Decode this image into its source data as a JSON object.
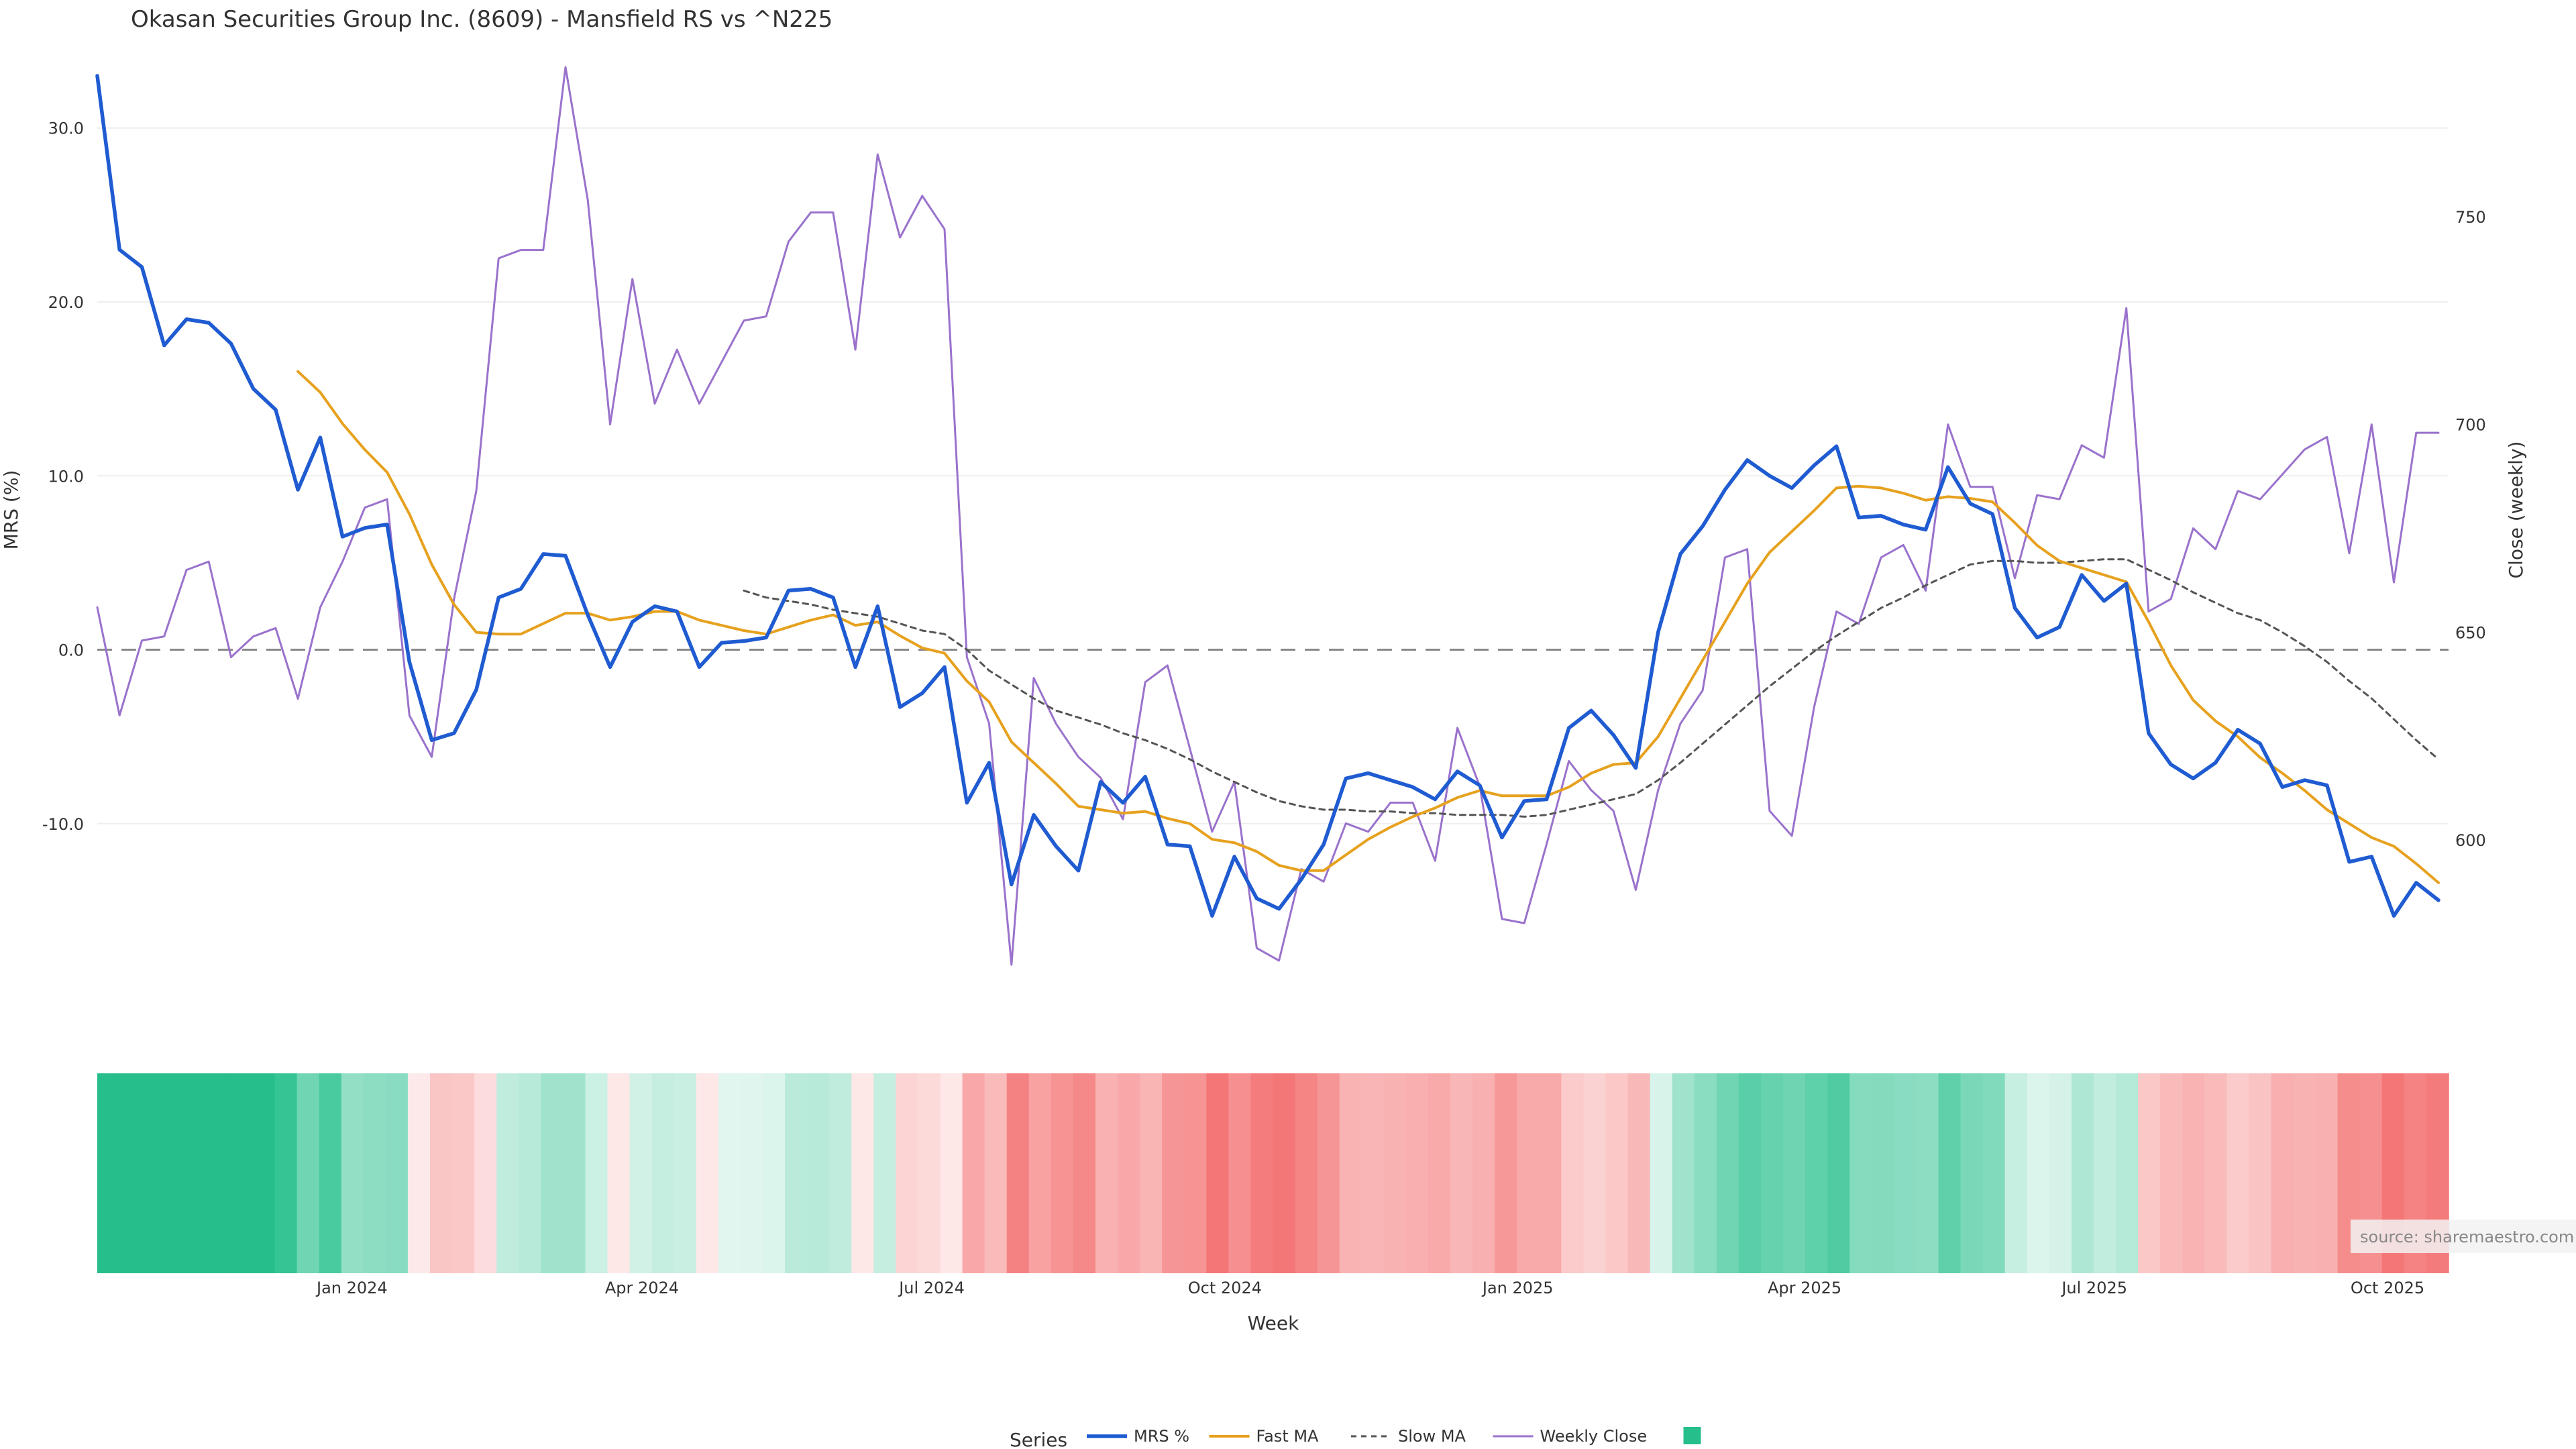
{
  "chart_data": {
    "type": "line",
    "title": "Okasan Securities Group Inc. (8609) - Mansfield RS vs ^N225",
    "xlabel": "Week",
    "ylabel_left": "MRS (%)",
    "ylabel_right": "Close (weekly)",
    "source_note": "source: sharemaestro.com",
    "x_start_date": "2023-10-13",
    "x_step_days": 7,
    "x_tick_labels": [
      "Jan 2024",
      "Apr 2024",
      "Jul 2024",
      "Oct 2024",
      "Jan 2025",
      "Apr 2025",
      "Jul 2025",
      "Oct 2025"
    ],
    "x_tick_dates": [
      "2024-01-01",
      "2024-04-01",
      "2024-07-01",
      "2024-10-01",
      "2025-01-01",
      "2025-04-01",
      "2025-07-01",
      "2025-10-01"
    ],
    "y_left_range": [
      -20.5,
      33.5
    ],
    "y_left_ticks": [
      "30.0",
      "20.0",
      "10.0",
      "0.0",
      "-10.0"
    ],
    "y_left_tick_values": [
      30,
      20,
      10,
      0,
      -10
    ],
    "y_right_range": [
      560,
      786
    ],
    "y_right_ticks": [
      "750",
      "700",
      "650",
      "600"
    ],
    "y_right_tick_values": [
      750,
      700,
      650,
      600
    ],
    "zero_line": 0,
    "colors": {
      "mrs": "#1f5bd1",
      "fast_ma": "#e6a11e",
      "slow_ma": "#555555",
      "weekly_close": "#9a72cc",
      "zero_line": "#888888",
      "grid": "#eeeeee",
      "heat_positive": "#26bf8c",
      "heat_negative": "#f47676"
    },
    "legend_title": "Series",
    "series": [
      {
        "name": "MRS %",
        "values": [
          33.0,
          23.0,
          22.0,
          17.5,
          19.0,
          18.8,
          17.6,
          15.0,
          13.8,
          9.2,
          12.2,
          6.5,
          7.0,
          7.2,
          -0.7,
          -5.2,
          -4.8,
          -2.3,
          3.0,
          3.5,
          5.5,
          5.4,
          2.0,
          -1.0,
          1.6,
          2.5,
          2.2,
          -1.0,
          0.4,
          0.5,
          0.7,
          3.4,
          3.5,
          3.0,
          -1.0,
          2.5,
          -3.3,
          -2.5,
          -1.0,
          -8.8,
          -6.5,
          -13.5,
          -9.5,
          -11.3,
          -12.7,
          -7.6,
          -8.8,
          -7.3,
          -11.2,
          -11.3,
          -15.3,
          -11.9,
          -14.3,
          -14.9,
          -13.2,
          -11.2,
          -7.4,
          -7.1,
          -7.5,
          -7.9,
          -8.6,
          -7.0,
          -7.8,
          -10.8,
          -8.7,
          -8.6,
          -4.5,
          -3.5,
          -4.9,
          -6.8,
          1.0,
          5.5,
          7.1,
          9.2,
          10.9,
          10.0,
          9.3,
          10.6,
          11.7,
          7.6,
          7.7,
          7.2,
          6.9,
          10.5,
          8.4,
          7.8,
          2.4,
          0.7,
          1.3,
          4.3,
          2.8,
          3.8,
          -4.8,
          -6.6,
          -7.4,
          -6.5,
          -4.6,
          -5.4,
          -7.9,
          -7.5,
          -7.8,
          -12.2,
          -11.9,
          -15.3,
          -13.4,
          -14.4
        ]
      },
      {
        "name": "Fast MA",
        "values": [
          null,
          null,
          null,
          null,
          null,
          null,
          null,
          null,
          null,
          16.0,
          14.8,
          13.0,
          11.5,
          10.2,
          7.8,
          4.9,
          2.6,
          1.0,
          0.9,
          0.9,
          1.5,
          2.1,
          2.1,
          1.7,
          1.9,
          2.2,
          2.2,
          1.7,
          1.4,
          1.1,
          0.9,
          1.3,
          1.7,
          2.0,
          1.4,
          1.6,
          0.8,
          0.1,
          -0.2,
          -1.8,
          -3.0,
          -5.3,
          -6.5,
          -7.7,
          -9.0,
          -9.2,
          -9.4,
          -9.3,
          -9.7,
          -10.0,
          -10.9,
          -11.1,
          -11.6,
          -12.4,
          -12.7,
          -12.7,
          -11.8,
          -10.9,
          -10.2,
          -9.6,
          -9.1,
          -8.5,
          -8.1,
          -8.4,
          -8.4,
          -8.4,
          -7.9,
          -7.1,
          -6.6,
          -6.5,
          -5.0,
          -2.8,
          -0.6,
          1.6,
          3.8,
          5.6,
          6.8,
          8.0,
          9.3,
          9.4,
          9.3,
          9.0,
          8.6,
          8.8,
          8.7,
          8.5,
          7.3,
          6.0,
          5.1,
          4.7,
          4.3,
          3.9,
          1.6,
          -0.9,
          -2.9,
          -4.1,
          -5.0,
          -6.2,
          -7.1,
          -8.1,
          -9.2,
          -10.0,
          -10.8,
          -11.3,
          -12.3,
          -13.4
        ]
      },
      {
        "name": "Slow MA",
        "values": [
          null,
          null,
          null,
          null,
          null,
          null,
          null,
          null,
          null,
          null,
          null,
          null,
          null,
          null,
          null,
          null,
          null,
          null,
          null,
          null,
          null,
          null,
          null,
          null,
          null,
          null,
          null,
          null,
          null,
          3.4,
          3.0,
          2.8,
          2.6,
          2.3,
          2.1,
          1.9,
          1.5,
          1.1,
          0.9,
          0.0,
          -1.2,
          -2.0,
          -2.8,
          -3.5,
          -3.9,
          -4.3,
          -4.8,
          -5.2,
          -5.7,
          -6.3,
          -7.0,
          -7.6,
          -8.2,
          -8.7,
          -9.0,
          -9.2,
          -9.2,
          -9.3,
          -9.3,
          -9.4,
          -9.4,
          -9.5,
          -9.5,
          -9.5,
          -9.6,
          -9.5,
          -9.2,
          -8.9,
          -8.6,
          -8.3,
          -7.5,
          -6.5,
          -5.4,
          -4.3,
          -3.2,
          -2.1,
          -1.1,
          -0.1,
          0.8,
          1.6,
          2.4,
          3.0,
          3.7,
          4.3,
          4.9,
          5.1,
          5.1,
          5.0,
          5.0,
          5.1,
          5.2,
          5.2,
          4.6,
          4.0,
          3.3,
          2.7,
          2.1,
          1.7,
          1.0,
          0.2,
          -0.7,
          -1.8,
          -2.8,
          -4.0,
          -5.2,
          -6.3
        ]
      },
      {
        "name": "Weekly Close",
        "axis": "right",
        "values": [
          656,
          630,
          648,
          649,
          665,
          667,
          644,
          649,
          651,
          634,
          656,
          667,
          680,
          682,
          630,
          620,
          658,
          684,
          740,
          742,
          742,
          786,
          754,
          700,
          735,
          705,
          718,
          705,
          715,
          725,
          726,
          744,
          751,
          751,
          718,
          765,
          745,
          755,
          747,
          644,
          628,
          570,
          639,
          628,
          620,
          615,
          605,
          638,
          642,
          622,
          602,
          614,
          574,
          571,
          593,
          590,
          604,
          602,
          609,
          609,
          595,
          627,
          613,
          581,
          580,
          599,
          619,
          612,
          607,
          588,
          612,
          628,
          636,
          668,
          670,
          607,
          601,
          632,
          655,
          652,
          668,
          671,
          660,
          700,
          685,
          685,
          663,
          683,
          682,
          695,
          692,
          728,
          655,
          658,
          675,
          670,
          684,
          682,
          688,
          694,
          697,
          669,
          700,
          662,
          698,
          698
        ]
      }
    ],
    "heatmap_strip": {
      "description": "Per-week MRS shading",
      "values_from": "MRS %"
    }
  }
}
